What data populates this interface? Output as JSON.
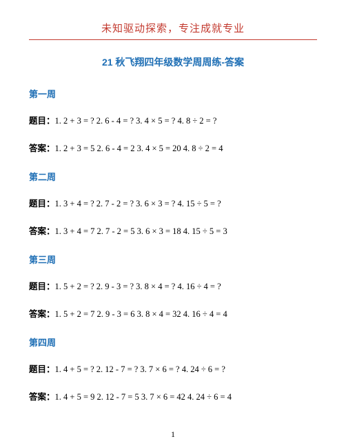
{
  "header": {
    "text": "未知驱动探索，专注成就专业",
    "color": "#c33a2f",
    "rule_color": "#c33a2f"
  },
  "title": {
    "text": "21 秋飞翔四年级数学周周练-答案",
    "color": "#1f6fb5"
  },
  "text_color": "#000000",
  "heading_color": "#1f6fb5",
  "weeks": [
    {
      "heading": "第一周",
      "question_label": "题目：",
      "question_text": "1. 2 + 3 = ? 2. 6 - 4 = ? 3. 4 × 5 = ? 4. 8 ÷ 2 = ?",
      "answer_label": "答案：",
      "answer_text": "1. 2 + 3 = 5 2. 6 - 4 = 2 3. 4 × 5 = 20 4. 8 ÷ 2 = 4"
    },
    {
      "heading": "第二周",
      "question_label": "题目：",
      "question_text": "1. 3 + 4 = ? 2. 7 - 2 = ? 3. 6 × 3 = ? 4. 15 ÷ 5 = ?",
      "answer_label": "答案：",
      "answer_text": "1. 3 + 4 = 7 2. 7 - 2 = 5 3. 6 × 3 = 18 4. 15 ÷ 5 = 3"
    },
    {
      "heading": "第三周",
      "question_label": "题目：",
      "question_text": "1. 5 + 2 = ? 2. 9 - 3 = ? 3. 8 × 4 = ? 4. 16 ÷ 4 = ?",
      "answer_label": "答案：",
      "answer_text": "1. 5 + 2 = 7 2. 9 - 3 = 6 3. 8 × 4 = 32 4. 16 ÷ 4 = 4"
    },
    {
      "heading": "第四周",
      "question_label": "题目：",
      "question_text": "1. 4 + 5 = ? 2. 12 - 7 = ? 3. 7 × 6 = ? 4. 24 ÷ 6 = ?",
      "answer_label": "答案：",
      "answer_text": "1. 4 + 5 = 9 2. 12 - 7 = 5 3. 7 × 6 = 42 4. 24 ÷ 6 = 4"
    }
  ],
  "page_number": "1"
}
